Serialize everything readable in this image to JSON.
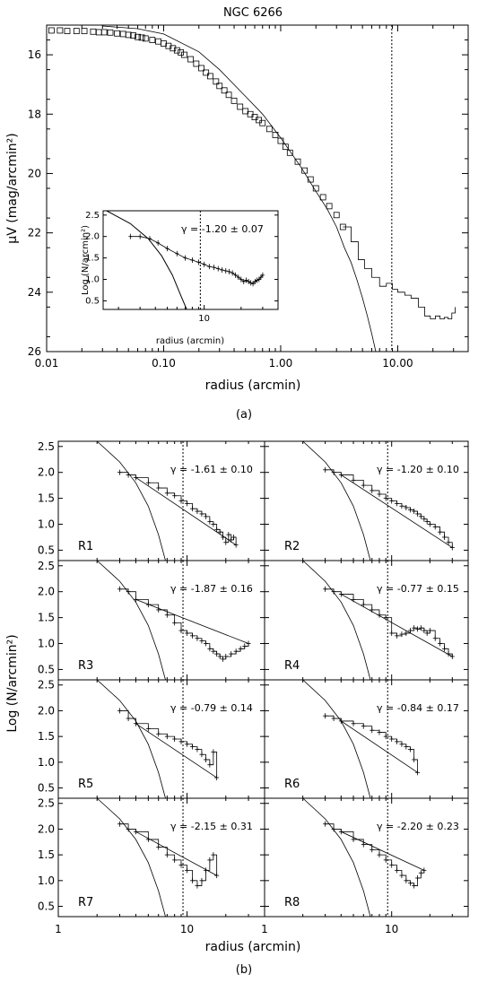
{
  "chart_data": [
    {
      "panel": "(a)",
      "type": "scatter",
      "title": "NGC 6266",
      "xlabel": "radius (arcmin)",
      "ylabel": "μV (mag/arcmin²)",
      "xscale": "log",
      "xlim": [
        0.01,
        40
      ],
      "ylim": [
        26,
        15
      ],
      "xticks": [
        "0.01",
        "0.10",
        "1.00",
        "10.00"
      ],
      "yticks": [
        "16",
        "18",
        "20",
        "22",
        "24",
        "26"
      ],
      "tidal_radius_line": 8.9,
      "profile_points": [
        [
          0.011,
          15.18
        ],
        [
          0.013,
          15.18
        ],
        [
          0.015,
          15.2
        ],
        [
          0.018,
          15.2
        ],
        [
          0.021,
          15.2
        ],
        [
          0.025,
          15.22
        ],
        [
          0.028,
          15.24
        ],
        [
          0.031,
          15.24
        ],
        [
          0.035,
          15.25
        ],
        [
          0.04,
          15.28
        ],
        [
          0.045,
          15.3
        ],
        [
          0.05,
          15.33
        ],
        [
          0.055,
          15.35
        ],
        [
          0.06,
          15.4
        ],
        [
          0.065,
          15.42
        ],
        [
          0.07,
          15.45
        ],
        [
          0.08,
          15.5
        ],
        [
          0.09,
          15.55
        ],
        [
          0.1,
          15.62
        ],
        [
          0.11,
          15.7
        ],
        [
          0.12,
          15.78
        ],
        [
          0.13,
          15.85
        ],
        [
          0.14,
          15.92
        ],
        [
          0.15,
          16.0
        ],
        [
          0.17,
          16.15
        ],
        [
          0.19,
          16.3
        ],
        [
          0.21,
          16.45
        ],
        [
          0.23,
          16.6
        ],
        [
          0.25,
          16.72
        ],
        [
          0.28,
          16.9
        ],
        [
          0.3,
          17.05
        ],
        [
          0.33,
          17.2
        ],
        [
          0.36,
          17.35
        ],
        [
          0.4,
          17.55
        ],
        [
          0.45,
          17.75
        ],
        [
          0.5,
          17.9
        ],
        [
          0.55,
          18.0
        ],
        [
          0.6,
          18.1
        ],
        [
          0.65,
          18.2
        ],
        [
          0.7,
          18.3
        ],
        [
          0.8,
          18.5
        ],
        [
          0.9,
          18.7
        ],
        [
          1.0,
          18.9
        ],
        [
          1.1,
          19.1
        ],
        [
          1.2,
          19.3
        ],
        [
          1.4,
          19.6
        ],
        [
          1.6,
          19.9
        ],
        [
          1.8,
          20.2
        ],
        [
          2.0,
          20.5
        ],
        [
          2.3,
          20.8
        ],
        [
          2.6,
          21.1
        ],
        [
          3.0,
          21.4
        ],
        [
          3.4,
          21.8
        ]
      ],
      "profile_step": [
        [
          3.4,
          21.8
        ],
        [
          4.0,
          22.3
        ],
        [
          4.6,
          22.9
        ],
        [
          5.2,
          23.2
        ],
        [
          6.0,
          23.5
        ],
        [
          7.0,
          23.8
        ],
        [
          8.0,
          23.7
        ],
        [
          9.0,
          23.9
        ],
        [
          10.0,
          24.0
        ],
        [
          11.5,
          24.1
        ],
        [
          13.0,
          24.2
        ],
        [
          15.0,
          24.5
        ],
        [
          17.0,
          24.8
        ],
        [
          19.0,
          24.9
        ],
        [
          21.0,
          24.8
        ],
        [
          23.0,
          24.9
        ],
        [
          25.0,
          24.85
        ],
        [
          27.0,
          24.9
        ],
        [
          29.0,
          24.7
        ],
        [
          31.0,
          24.5
        ]
      ],
      "king_model": [
        [
          0.03,
          15.03
        ],
        [
          0.06,
          15.12
        ],
        [
          0.1,
          15.3
        ],
        [
          0.2,
          15.9
        ],
        [
          0.3,
          16.5
        ],
        [
          0.5,
          17.4
        ],
        [
          0.7,
          18.0
        ],
        [
          1.0,
          18.8
        ],
        [
          1.5,
          19.8
        ],
        [
          2.0,
          20.6
        ],
        [
          2.5,
          21.2
        ],
        [
          3.0,
          21.8
        ],
        [
          3.5,
          22.5
        ],
        [
          4.0,
          23.0
        ],
        [
          4.5,
          23.6
        ],
        [
          5.0,
          24.2
        ],
        [
          5.5,
          24.8
        ],
        [
          6.0,
          25.4
        ],
        [
          6.5,
          26.0
        ]
      ],
      "inset": {
        "ylabel": "Log (N/arcmin²)",
        "xlabel": "radius (arcmin)",
        "xtick_label": "10",
        "yticks": [
          "0.5",
          "1.0",
          "1.5",
          "2.0",
          "2.5"
        ],
        "gamma_text": "γ = -1.20 ± 0.07",
        "data": [
          [
            2.5,
            2.0
          ],
          [
            3.0,
            2.0
          ],
          [
            3.6,
            1.95
          ],
          [
            4.2,
            1.85
          ],
          [
            5.0,
            1.72
          ],
          [
            6.0,
            1.6
          ],
          [
            7.0,
            1.5
          ],
          [
            8.0,
            1.45
          ],
          [
            9.0,
            1.4
          ],
          [
            10.0,
            1.35
          ],
          [
            11.0,
            1.3
          ],
          [
            12.0,
            1.28
          ],
          [
            13.0,
            1.25
          ],
          [
            14.0,
            1.22
          ],
          [
            15.0,
            1.2
          ],
          [
            16.0,
            1.18
          ],
          [
            17.0,
            1.15
          ],
          [
            18.0,
            1.1
          ],
          [
            19.0,
            1.05
          ],
          [
            20.0,
            1.0
          ],
          [
            21.0,
            0.95
          ],
          [
            22.0,
            0.98
          ],
          [
            23.0,
            0.95
          ],
          [
            24.0,
            0.92
          ],
          [
            25.0,
            0.9
          ],
          [
            26.0,
            0.95
          ],
          [
            27.0,
            0.98
          ],
          [
            28.0,
            1.0
          ],
          [
            29.0,
            1.05
          ],
          [
            30.0,
            1.1
          ]
        ]
      }
    },
    {
      "panel": "(b)",
      "type": "line",
      "xlabel": "radius (arcmin)",
      "ylabel": "Log (N/arcmin²)",
      "xticks": [
        "1",
        "10",
        "1",
        "10"
      ],
      "yticks": [
        "0.5",
        "1.0",
        "1.5",
        "2.0",
        "2.5"
      ],
      "subpanels": [
        {
          "label": "R1",
          "gamma": "γ = -1.61 ± 0.10",
          "data": [
            [
              3,
              2.0
            ],
            [
              3.5,
              1.95
            ],
            [
              4,
              1.9
            ],
            [
              5,
              1.8
            ],
            [
              6,
              1.7
            ],
            [
              7,
              1.6
            ],
            [
              8,
              1.55
            ],
            [
              9,
              1.45
            ],
            [
              10,
              1.4
            ],
            [
              11,
              1.3
            ],
            [
              12,
              1.25
            ],
            [
              13,
              1.2
            ],
            [
              14,
              1.15
            ],
            [
              15,
              1.05
            ],
            [
              16,
              1.0
            ],
            [
              17,
              0.9
            ],
            [
              18,
              0.85
            ],
            [
              19,
              0.75
            ],
            [
              20,
              0.65
            ],
            [
              21,
              0.8
            ],
            [
              22,
              0.7
            ],
            [
              23,
              0.75
            ],
            [
              24,
              0.6
            ]
          ]
        },
        {
          "label": "R2",
          "gamma": "γ = -1.20 ± 0.10",
          "data": [
            [
              3,
              2.05
            ],
            [
              3.5,
              2.0
            ],
            [
              4,
              1.95
            ],
            [
              5,
              1.85
            ],
            [
              6,
              1.75
            ],
            [
              7,
              1.65
            ],
            [
              8,
              1.58
            ],
            [
              9,
              1.5
            ],
            [
              10,
              1.45
            ],
            [
              11,
              1.4
            ],
            [
              12,
              1.35
            ],
            [
              13,
              1.32
            ],
            [
              14,
              1.28
            ],
            [
              15,
              1.25
            ],
            [
              16,
              1.2
            ],
            [
              17,
              1.15
            ],
            [
              18,
              1.1
            ],
            [
              19,
              1.05
            ],
            [
              20,
              1.0
            ],
            [
              22,
              0.95
            ],
            [
              24,
              0.85
            ],
            [
              26,
              0.75
            ],
            [
              28,
              0.65
            ],
            [
              30,
              0.55
            ]
          ]
        },
        {
          "label": "R3",
          "gamma": "γ = -1.87 ± 0.16",
          "data": [
            [
              3,
              2.05
            ],
            [
              3.5,
              2.0
            ],
            [
              4,
              1.85
            ],
            [
              5,
              1.75
            ],
            [
              6,
              1.65
            ],
            [
              7,
              1.55
            ],
            [
              8,
              1.4
            ],
            [
              9,
              1.25
            ],
            [
              10,
              1.2
            ],
            [
              11,
              1.15
            ],
            [
              12,
              1.1
            ],
            [
              13,
              1.05
            ],
            [
              14,
              1.0
            ],
            [
              15,
              0.9
            ],
            [
              16,
              0.85
            ],
            [
              17,
              0.8
            ],
            [
              18,
              0.75
            ],
            [
              19,
              0.7
            ],
            [
              20,
              0.75
            ],
            [
              22,
              0.8
            ],
            [
              24,
              0.85
            ],
            [
              26,
              0.9
            ],
            [
              28,
              0.95
            ],
            [
              30,
              1.0
            ]
          ]
        },
        {
          "label": "R4",
          "gamma": "γ = -0.77 ± 0.15",
          "data": [
            [
              3,
              2.05
            ],
            [
              3.5,
              2.0
            ],
            [
              4,
              1.95
            ],
            [
              5,
              1.85
            ],
            [
              6,
              1.75
            ],
            [
              7,
              1.65
            ],
            [
              8,
              1.55
            ],
            [
              9,
              1.5
            ],
            [
              10,
              1.2
            ],
            [
              11,
              1.15
            ],
            [
              12,
              1.18
            ],
            [
              13,
              1.2
            ],
            [
              14,
              1.25
            ],
            [
              15,
              1.3
            ],
            [
              16,
              1.28
            ],
            [
              17,
              1.3
            ],
            [
              18,
              1.25
            ],
            [
              19,
              1.2
            ],
            [
              20,
              1.25
            ],
            [
              22,
              1.1
            ],
            [
              24,
              1.0
            ],
            [
              26,
              0.9
            ],
            [
              28,
              0.8
            ],
            [
              30,
              0.75
            ]
          ]
        },
        {
          "label": "R5",
          "gamma": "γ = -0.79 ± 0.14",
          "data": [
            [
              3,
              2.0
            ],
            [
              3.5,
              1.85
            ],
            [
              4,
              1.75
            ],
            [
              5,
              1.65
            ],
            [
              6,
              1.55
            ],
            [
              7,
              1.5
            ],
            [
              8,
              1.45
            ],
            [
              9,
              1.4
            ],
            [
              10,
              1.35
            ],
            [
              11,
              1.3
            ],
            [
              12,
              1.25
            ],
            [
              13,
              1.15
            ],
            [
              14,
              1.05
            ],
            [
              15,
              0.95
            ],
            [
              16,
              1.2
            ],
            [
              17,
              0.7
            ]
          ]
        },
        {
          "label": "R6",
          "gamma": "γ = -0.84 ± 0.17",
          "data": [
            [
              3,
              1.9
            ],
            [
              3.5,
              1.85
            ],
            [
              4,
              1.8
            ],
            [
              5,
              1.75
            ],
            [
              6,
              1.7
            ],
            [
              7,
              1.62
            ],
            [
              8,
              1.58
            ],
            [
              9,
              1.5
            ],
            [
              10,
              1.45
            ],
            [
              11,
              1.4
            ],
            [
              12,
              1.35
            ],
            [
              13,
              1.3
            ],
            [
              14,
              1.25
            ],
            [
              15,
              1.05
            ],
            [
              16,
              0.8
            ]
          ]
        },
        {
          "label": "R7",
          "gamma": "γ = -2.15 ± 0.31",
          "data": [
            [
              3,
              2.1
            ],
            [
              3.5,
              2.0
            ],
            [
              4,
              1.95
            ],
            [
              5,
              1.8
            ],
            [
              6,
              1.65
            ],
            [
              7,
              1.5
            ],
            [
              8,
              1.4
            ],
            [
              9,
              1.3
            ],
            [
              10,
              1.2
            ],
            [
              11,
              1.0
            ],
            [
              12,
              0.9
            ],
            [
              13,
              1.0
            ],
            [
              14,
              1.2
            ],
            [
              15,
              1.4
            ],
            [
              16,
              1.5
            ],
            [
              17,
              1.1
            ]
          ]
        },
        {
          "label": "R8",
          "gamma": "γ = -2.20 ± 0.23",
          "data": [
            [
              3,
              2.1
            ],
            [
              3.5,
              2.0
            ],
            [
              4,
              1.95
            ],
            [
              5,
              1.8
            ],
            [
              6,
              1.7
            ],
            [
              7,
              1.6
            ],
            [
              8,
              1.5
            ],
            [
              9,
              1.4
            ],
            [
              10,
              1.3
            ],
            [
              11,
              1.2
            ],
            [
              12,
              1.1
            ],
            [
              13,
              1.0
            ],
            [
              14,
              0.95
            ],
            [
              15,
              0.9
            ],
            [
              16,
              1.05
            ],
            [
              17,
              1.15
            ],
            [
              18,
              1.2
            ]
          ]
        }
      ]
    }
  ],
  "captions": {
    "a": "(a)",
    "b": "(b)"
  }
}
